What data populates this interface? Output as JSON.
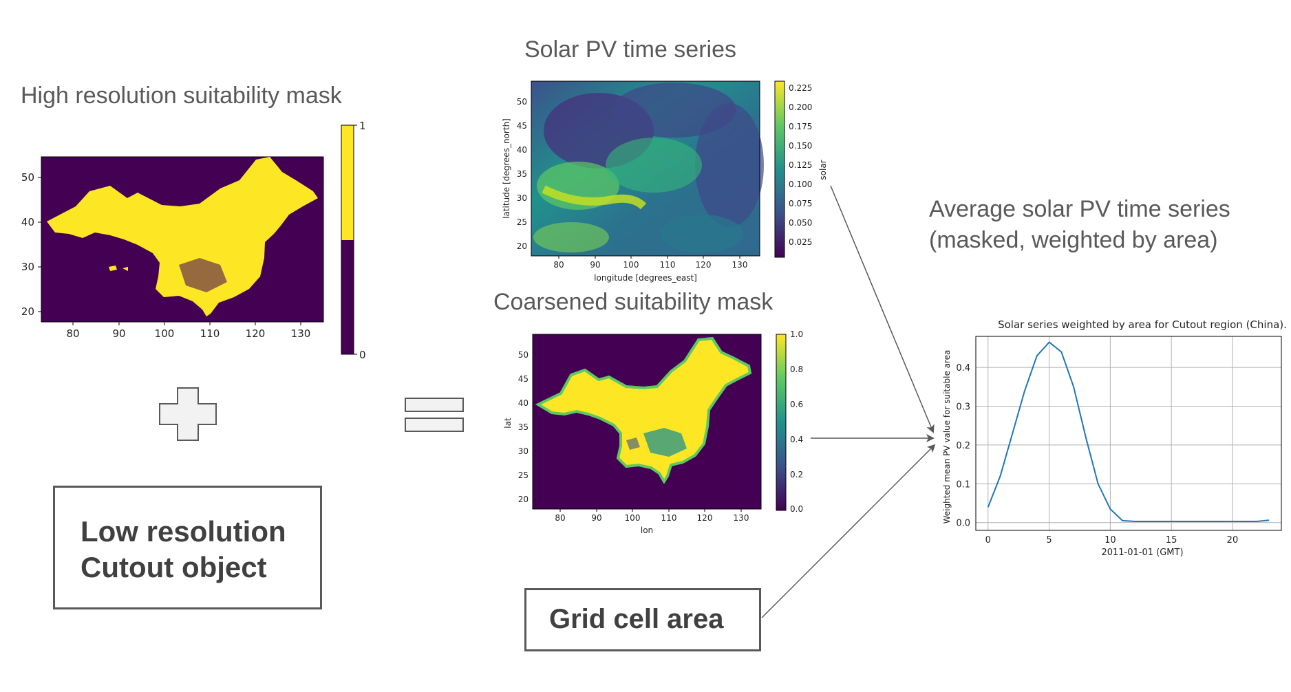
{
  "titles": {
    "high_res_mask": "High resolution suitability mask",
    "solar_pv": "Solar PV time series",
    "coarsened_mask": "Coarsened suitability mask",
    "average_line1": "Average solar PV time series",
    "average_line2": "(masked, weighted by area)"
  },
  "boxes": {
    "cutout_line1": "Low resolution",
    "cutout_line2": "Cutout object",
    "grid_cell_area": "Grid cell area"
  },
  "colors": {
    "viridis_dark": "#440154",
    "viridis_yellow": "#fde725",
    "viridis_teal": "#21918c",
    "viridis_blue": "#3b528b",
    "viridis_green": "#5ec962",
    "line_blue": "#1f77b4",
    "text_gray": "#595959",
    "symbol_fill": "#f2f2f2"
  },
  "high_res_map": {
    "x_ticks": [
      "80",
      "90",
      "100",
      "110",
      "120",
      "130"
    ],
    "y_ticks": [
      "50",
      "40",
      "30",
      "20"
    ],
    "colorbar_ticks": [
      "1",
      "0"
    ]
  },
  "solar_map": {
    "xlabel": "longitude [degrees_east]",
    "ylabel": "latitude [degrees_north]",
    "cbar_label": "solar",
    "x_ticks": [
      "80",
      "90",
      "100",
      "110",
      "120",
      "130"
    ],
    "y_ticks": [
      "50",
      "45",
      "40",
      "35",
      "30",
      "25",
      "20"
    ],
    "colorbar_ticks": [
      "0.225",
      "0.200",
      "0.175",
      "0.150",
      "0.125",
      "0.100",
      "0.075",
      "0.050",
      "0.025"
    ]
  },
  "coarse_map": {
    "xlabel": "lon",
    "ylabel": "lat",
    "x_ticks": [
      "80",
      "90",
      "100",
      "110",
      "120",
      "130"
    ],
    "y_ticks": [
      "50",
      "45",
      "40",
      "35",
      "30",
      "25",
      "20"
    ],
    "colorbar_ticks": [
      "1.0",
      "0.8",
      "0.6",
      "0.4",
      "0.2",
      "0.0"
    ]
  },
  "chart_data": {
    "type": "line",
    "title": "Solar series weighted by area for Cutout region (China).",
    "xlabel": "2011-01-01 (GMT)",
    "ylabel": "Weighted mean PV value for suitable area",
    "x_ticks": [
      "0",
      "5",
      "10",
      "15",
      "20"
    ],
    "y_ticks": [
      "0.0",
      "0.1",
      "0.2",
      "0.3",
      "0.4"
    ],
    "xlim": [
      -1,
      24
    ],
    "ylim": [
      -0.02,
      0.48
    ],
    "grid": true,
    "x": [
      0,
      1,
      2,
      3,
      4,
      5,
      6,
      7,
      8,
      9,
      10,
      11,
      12,
      13,
      14,
      15,
      16,
      17,
      18,
      19,
      20,
      21,
      22,
      23
    ],
    "y": [
      0.04,
      0.12,
      0.23,
      0.34,
      0.43,
      0.465,
      0.44,
      0.35,
      0.22,
      0.1,
      0.035,
      0.005,
      0.003,
      0.003,
      0.003,
      0.003,
      0.003,
      0.003,
      0.003,
      0.003,
      0.003,
      0.003,
      0.003,
      0.006
    ]
  }
}
